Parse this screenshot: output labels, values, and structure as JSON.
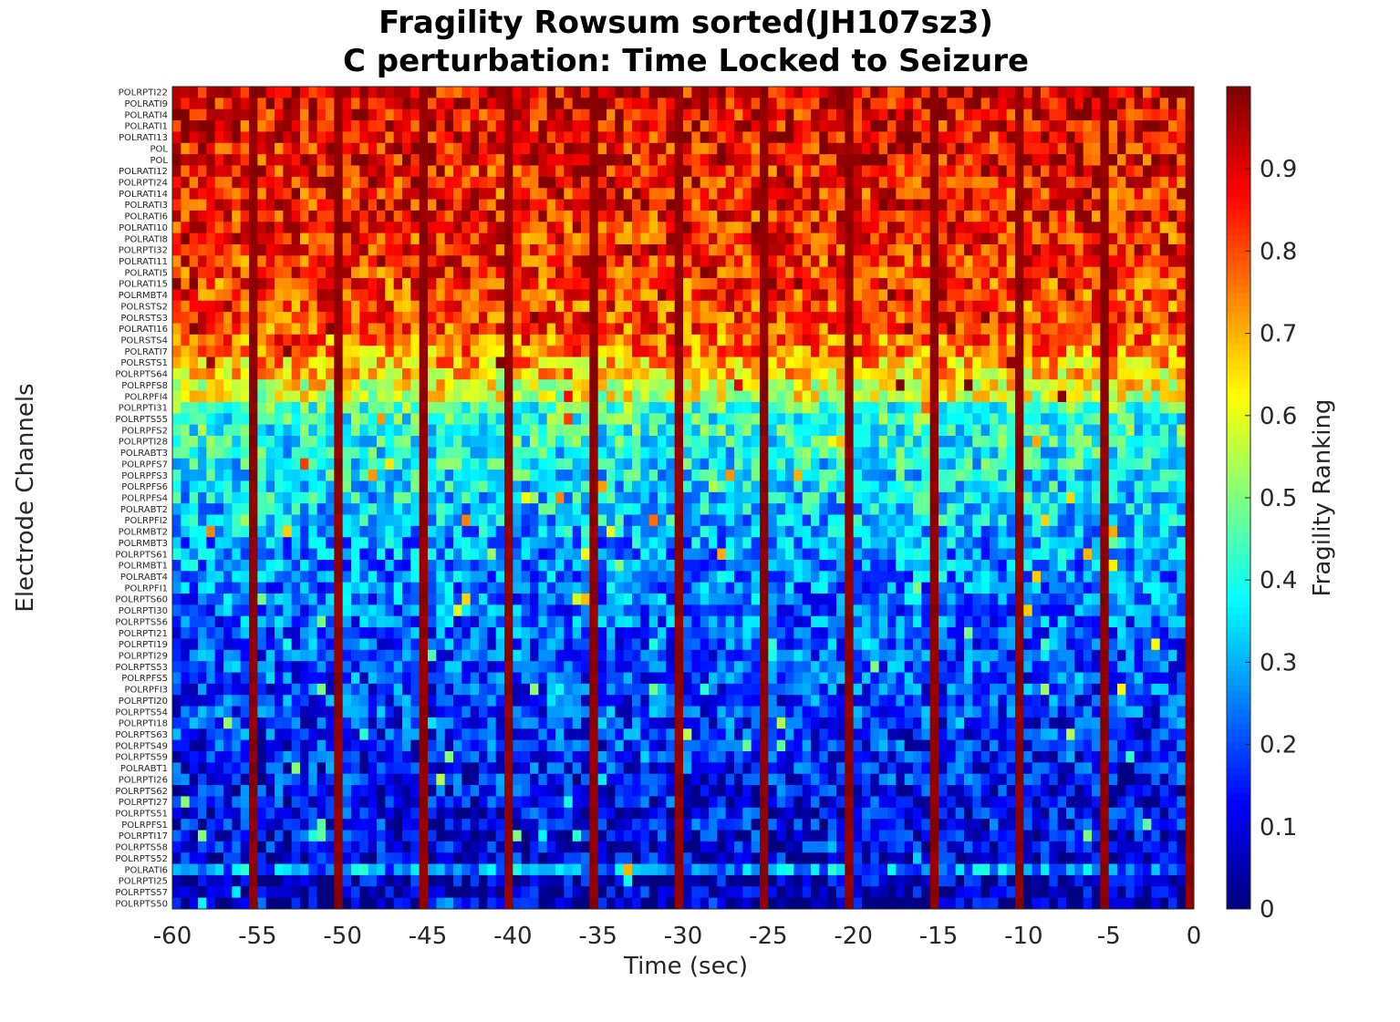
{
  "chart_data": {
    "type": "heatmap",
    "title_line1": "Fragility Rowsum sorted(JH107sz3)",
    "title_line2": "C perturbation:  Time Locked to Seizure",
    "xlabel": "Time (sec)",
    "ylabel": "Electrode Channels",
    "colorbar_label": "Fragility Ranking",
    "colormap": "jet",
    "xlim": [
      -60,
      0
    ],
    "x_ticks": [
      -60,
      -55,
      -50,
      -45,
      -40,
      -35,
      -30,
      -25,
      -20,
      -15,
      -10,
      -5,
      0
    ],
    "x_tick_labels": [
      "-60",
      "-55",
      "-50",
      "-45",
      "-40",
      "-35",
      "-30",
      "-25",
      "-20",
      "-15",
      "-10",
      "-5",
      "0"
    ],
    "colorbar_range": [
      0,
      1
    ],
    "colorbar_ticks": [
      0,
      0.1,
      0.2,
      0.3,
      0.4,
      0.5,
      0.6,
      0.7,
      0.8,
      0.9
    ],
    "colorbar_tick_labels": [
      "0",
      "0.1",
      "0.2",
      "0.3",
      "0.4",
      "0.5",
      "0.6",
      "0.7",
      "0.8",
      "0.9"
    ],
    "high_fragility_columns_sec": [
      -55,
      -50,
      -45,
      -40,
      -35,
      -30,
      -25,
      -20,
      -15,
      -10,
      -5,
      0
    ],
    "channels": [
      "POLRPTI22",
      "POLRATI9",
      "POLRATI4",
      "POLRATI1",
      "POLRATI13",
      "POL",
      "POL",
      "POLRATI12",
      "POLRPTI24",
      "POLRATI14",
      "POLRATI3",
      "POLRATI6",
      "POLRATI10",
      "POLRATI8",
      "POLRPTI32",
      "POLRATI11",
      "POLRATI5",
      "POLRATI15",
      "POLRMBT4",
      "POLRSTS2",
      "POLRSTS3",
      "POLRATI16",
      "POLRSTS4",
      "POLRATI7",
      "POLRSTS1",
      "POLRPTS64",
      "POLRPFS8",
      "POLRPFI4",
      "POLRPTI31",
      "POLRPTS55",
      "POLRPFS2",
      "POLRPTI28",
      "POLRABT3",
      "POLRPFS7",
      "POLRPFS3",
      "POLRPFS6",
      "POLRPFS4",
      "POLRABT2",
      "POLRPFI2",
      "POLRMBT2",
      "POLRMBT3",
      "POLRPTS61",
      "POLRMBT1",
      "POLRABT4",
      "POLRPFI1",
      "POLRPTS60",
      "POLRPTI30",
      "POLRPTS56",
      "POLRPTI21",
      "POLRPTI19",
      "POLRPTI29",
      "POLRPTS53",
      "POLRPFS5",
      "POLRPFI3",
      "POLRPTI20",
      "POLRPTS54",
      "POLRPTI18",
      "POLRPTS63",
      "POLRPTS49",
      "POLRPTS59",
      "POLRABT1",
      "POLRPTI26",
      "POLRPTS62",
      "POLRPTI27",
      "POLRPTS51",
      "POLRPFS1",
      "POLRPTI17",
      "POLRPTS58",
      "POLRPTS52",
      "POLRATI6",
      "POLRPTI25",
      "POLRPTS57",
      "POLRPTS50"
    ],
    "row_mean_fragility": [
      0.9,
      0.9,
      0.88,
      0.88,
      0.88,
      0.87,
      0.87,
      0.86,
      0.86,
      0.85,
      0.85,
      0.85,
      0.84,
      0.84,
      0.84,
      0.83,
      0.83,
      0.82,
      0.82,
      0.81,
      0.81,
      0.8,
      0.78,
      0.74,
      0.7,
      0.66,
      0.62,
      0.58,
      0.44,
      0.42,
      0.41,
      0.39,
      0.38,
      0.37,
      0.36,
      0.35,
      0.34,
      0.33,
      0.32,
      0.3,
      0.28,
      0.27,
      0.26,
      0.26,
      0.25,
      0.24,
      0.23,
      0.22,
      0.22,
      0.21,
      0.21,
      0.2,
      0.2,
      0.19,
      0.18,
      0.18,
      0.17,
      0.17,
      0.16,
      0.16,
      0.15,
      0.14,
      0.14,
      0.13,
      0.12,
      0.12,
      0.11,
      0.1,
      0.09,
      0.28,
      0.06,
      0.05,
      0.04
    ]
  }
}
